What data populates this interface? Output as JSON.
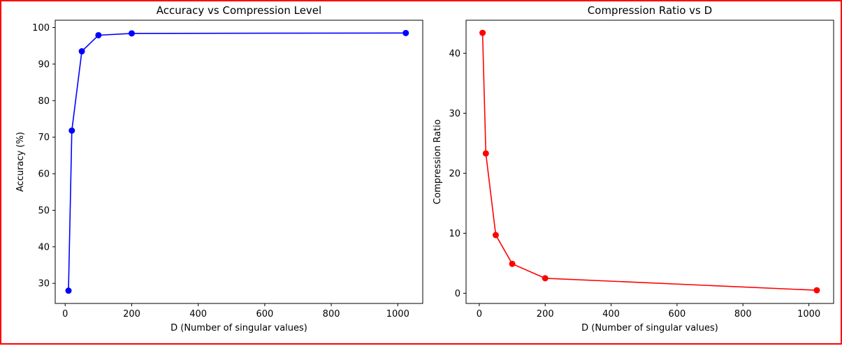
{
  "chart_data": [
    {
      "type": "line",
      "title": "Accuracy vs Compression Level",
      "xlabel": "D (Number of singular values)",
      "ylabel": "Accuracy (%)",
      "xlim": [
        -30,
        1075
      ],
      "ylim": [
        24.5,
        102.0
      ],
      "xticks": [
        0,
        200,
        400,
        600,
        800,
        1000
      ],
      "yticks": [
        30,
        40,
        50,
        60,
        70,
        80,
        90,
        100
      ],
      "color": "#0000ff",
      "marker": "circle",
      "grid": false,
      "series": [
        {
          "x": [
            10,
            20,
            50,
            100,
            200,
            1024
          ],
          "y": [
            28.0,
            71.8,
            93.5,
            97.9,
            98.4,
            98.5
          ]
        }
      ]
    },
    {
      "type": "line",
      "title": "Compression Ratio vs D",
      "xlabel": "D (Number of singular values)",
      "ylabel": "Compression Ratio",
      "xlim": [
        -40,
        1075
      ],
      "ylim": [
        -1.7,
        45.5
      ],
      "xticks": [
        0,
        200,
        400,
        600,
        800,
        1000
      ],
      "yticks": [
        0,
        10,
        20,
        30,
        40
      ],
      "color": "#ff0000",
      "marker": "circle",
      "grid": false,
      "series": [
        {
          "x": [
            10,
            20,
            50,
            100,
            200,
            1024
          ],
          "y": [
            43.4,
            23.3,
            9.7,
            4.9,
            2.5,
            0.5
          ]
        }
      ]
    }
  ]
}
